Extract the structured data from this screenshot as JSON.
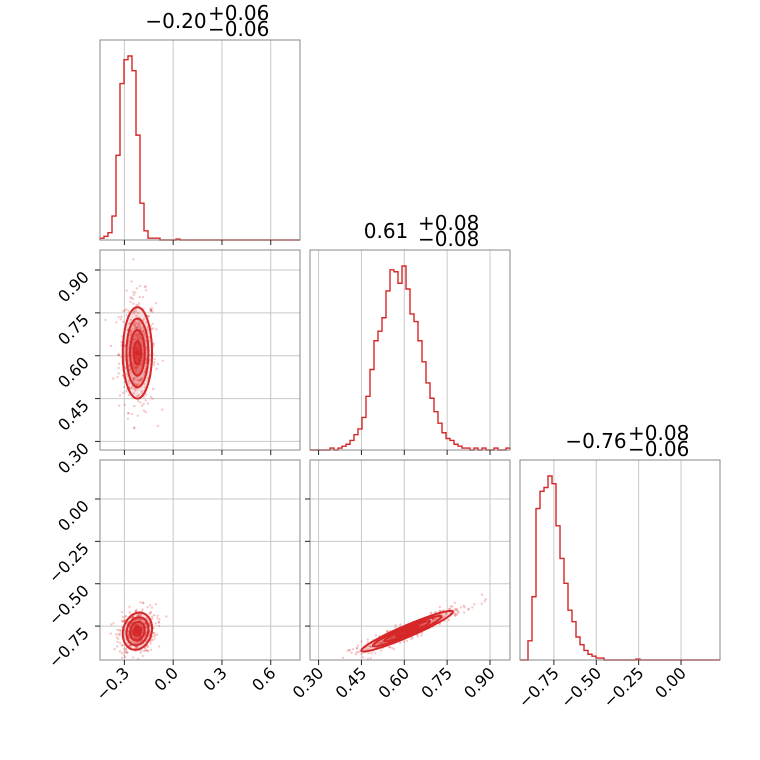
{
  "chart_data": {
    "type": "corner",
    "color": "#d62728",
    "parameters": [
      {
        "index": 0,
        "median": -0.2,
        "plus": 0.06,
        "minus": 0.06,
        "title": "−0.20",
        "title_plus": "+0.06",
        "title_minus": "−0.06",
        "range": [
          -0.45,
          0.78
        ],
        "ticks": [
          -0.3,
          0.0,
          0.3,
          0.6
        ],
        "tick_labels": [
          "−0.3",
          "0.0",
          "0.3",
          "0.6"
        ]
      },
      {
        "index": 1,
        "median": 0.61,
        "plus": 0.08,
        "minus": 0.08,
        "title": "0.61",
        "title_plus": "+0.08",
        "title_minus": "−0.08",
        "range": [
          0.27,
          0.97
        ],
        "ticks": [
          0.3,
          0.45,
          0.6,
          0.75,
          0.9
        ],
        "tick_labels": [
          "0.30",
          "0.45",
          "0.60",
          "0.75",
          "0.90"
        ]
      },
      {
        "index": 2,
        "median": -0.76,
        "plus": 0.08,
        "minus": 0.06,
        "title": "−0.76",
        "title_plus": "+0.08",
        "title_minus": "−0.06",
        "range": [
          -0.95,
          0.23
        ],
        "ticks": [
          -0.75,
          -0.5,
          -0.25,
          0.0
        ],
        "tick_labels": [
          "−0.75",
          "−0.50",
          "−0.25",
          "0.00"
        ]
      }
    ],
    "histograms": [
      {
        "param": 0,
        "bin_start": -0.45,
        "bin_width": 0.0246,
        "counts": [
          0.01,
          0.02,
          0.04,
          0.13,
          0.46,
          0.85,
          0.98,
          1.0,
          0.92,
          0.57,
          0.2,
          0.05,
          0.01,
          0.01,
          0.01,
          0.0,
          0.0,
          0.0,
          0.0,
          0.005,
          0.0,
          0.0,
          0.0,
          0.0,
          0.0,
          0.0,
          0.0,
          0.0,
          0.0,
          0.0,
          0.0,
          0.0,
          0.0,
          0.0,
          0.0,
          0.0,
          0.0,
          0.0,
          0.0,
          0.0,
          0.0,
          0.0,
          0.0,
          0.0,
          0.0,
          0.0,
          0.0,
          0.0,
          0.0,
          0.0
        ]
      },
      {
        "param": 1,
        "bin_start": 0.27,
        "bin_width": 0.014,
        "counts": [
          0.0,
          0.0,
          0.0,
          0.0,
          0.0,
          0.01,
          0.0,
          0.01,
          0.02,
          0.03,
          0.05,
          0.08,
          0.11,
          0.17,
          0.28,
          0.42,
          0.57,
          0.62,
          0.69,
          0.83,
          0.94,
          0.93,
          0.87,
          0.96,
          0.84,
          0.71,
          0.67,
          0.57,
          0.46,
          0.35,
          0.27,
          0.2,
          0.14,
          0.09,
          0.06,
          0.05,
          0.03,
          0.02,
          0.01,
          0.01,
          0.0,
          0.01,
          0.0,
          0.01,
          0.0,
          0.0,
          0.01,
          0.0,
          0.0,
          0.01
        ]
      },
      {
        "param": 2,
        "bin_start": -0.95,
        "bin_width": 0.0236,
        "counts": [
          0.0,
          0.0,
          0.1,
          0.33,
          0.79,
          0.88,
          0.9,
          0.96,
          0.92,
          0.7,
          0.53,
          0.4,
          0.26,
          0.2,
          0.12,
          0.08,
          0.05,
          0.03,
          0.02,
          0.01,
          0.01,
          0.0,
          0.0,
          0.0,
          0.0,
          0.0,
          0.0,
          0.0,
          0.0,
          0.005,
          0.0,
          0.0,
          0.0,
          0.0,
          0.0,
          0.0,
          0.0,
          0.0,
          0.0,
          0.0,
          0.0,
          0.0,
          0.0,
          0.0,
          0.0,
          0.0,
          0.0,
          0.0,
          0.0,
          0.0
        ]
      }
    ],
    "joint": [
      {
        "x_param": 0,
        "y_param": 1,
        "mean": [
          -0.22,
          0.61
        ],
        "sd": [
          0.045,
          0.08
        ],
        "corr": 0.0
      },
      {
        "x_param": 0,
        "y_param": 2,
        "mean": [
          -0.22,
          -0.78
        ],
        "sd": [
          0.045,
          0.055
        ],
        "corr": 0.15
      },
      {
        "x_param": 1,
        "y_param": 2,
        "mean": [
          0.61,
          -0.78
        ],
        "sd": [
          0.08,
          0.06
        ],
        "corr": 0.95
      }
    ],
    "contour_levels_sigma": [
      0.5,
      1.0,
      1.5,
      2.0
    ],
    "grid": true
  }
}
